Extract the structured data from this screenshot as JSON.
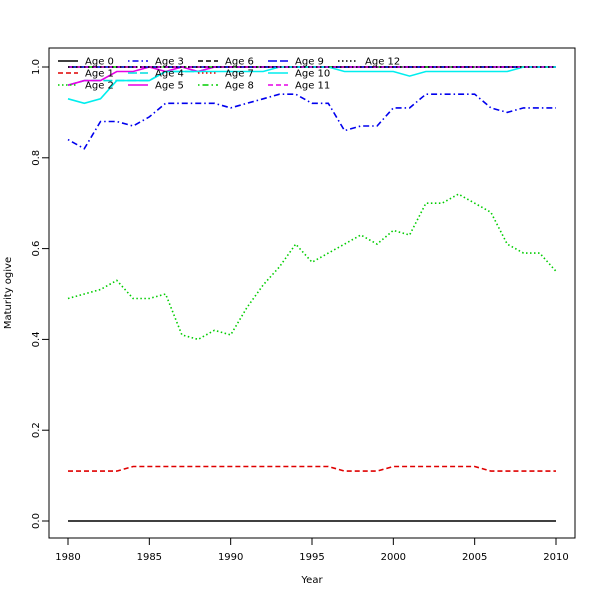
{
  "chart_data": {
    "type": "line",
    "title": "",
    "xlabel": "Year",
    "ylabel": "Maturity ogive",
    "xlim": [
      1980,
      2010
    ],
    "ylim": [
      0,
      1
    ],
    "x_ticks": [
      "1980",
      "1985",
      "1990",
      "1995",
      "2000",
      "2005",
      "2010"
    ],
    "y_ticks": [
      "0.0",
      "0.2",
      "0.4",
      "0.6",
      "0.8",
      "1.0"
    ],
    "grid": false,
    "legend_position": "top-left",
    "legend_columns": 6,
    "x": [
      1980,
      1981,
      1982,
      1983,
      1984,
      1985,
      1986,
      1987,
      1988,
      1989,
      1990,
      1991,
      1992,
      1993,
      1994,
      1995,
      1996,
      1997,
      1998,
      1999,
      2000,
      2001,
      2002,
      2003,
      2004,
      2005,
      2006,
      2007,
      2008,
      2009,
      2010
    ],
    "series": [
      {
        "name": "Age 0",
        "color": "#000000",
        "dash": "solid",
        "values": [
          0,
          0,
          0,
          0,
          0,
          0,
          0,
          0,
          0,
          0,
          0,
          0,
          0,
          0,
          0,
          0,
          0,
          0,
          0,
          0,
          0,
          0,
          0,
          0,
          0,
          0,
          0,
          0,
          0,
          0,
          0
        ]
      },
      {
        "name": "Age 1",
        "color": "#DF0000",
        "dash": "dashed",
        "values": [
          0.11,
          0.11,
          0.11,
          0.11,
          0.12,
          0.12,
          0.12,
          0.12,
          0.12,
          0.12,
          0.12,
          0.12,
          0.12,
          0.12,
          0.12,
          0.12,
          0.12,
          0.11,
          0.11,
          0.11,
          0.12,
          0.12,
          0.12,
          0.12,
          0.12,
          0.12,
          0.11,
          0.11,
          0.11,
          0.11,
          0.11
        ]
      },
      {
        "name": "Age 2",
        "color": "#00CD00",
        "dash": "dotted",
        "values": [
          0.49,
          0.5,
          0.51,
          0.53,
          0.49,
          0.49,
          0.5,
          0.41,
          0.4,
          0.42,
          0.41,
          0.47,
          0.52,
          0.56,
          0.61,
          0.57,
          0.59,
          0.61,
          0.63,
          0.61,
          0.64,
          0.63,
          0.7,
          0.7,
          0.72,
          0.7,
          0.68,
          0.61,
          0.59,
          0.59,
          0.55
        ]
      },
      {
        "name": "Age 3",
        "color": "#0000EE",
        "dash": "dotdash",
        "values": [
          0.84,
          0.82,
          0.88,
          0.88,
          0.87,
          0.89,
          0.92,
          0.92,
          0.92,
          0.92,
          0.91,
          0.92,
          0.93,
          0.94,
          0.94,
          0.92,
          0.92,
          0.86,
          0.87,
          0.87,
          0.91,
          0.91,
          0.94,
          0.94,
          0.94,
          0.94,
          0.91,
          0.9,
          0.91,
          0.91,
          0.91
        ]
      },
      {
        "name": "Age 4",
        "color": "#00DDDD",
        "dash": "longdash",
        "values": [
          0.96,
          0.97,
          0.97,
          0.97,
          0.97,
          0.97,
          0.99,
          0.99,
          0.99,
          1,
          1,
          1,
          1,
          1,
          1,
          1,
          1,
          1,
          1,
          1,
          1,
          1,
          1,
          1,
          1,
          1,
          1,
          1,
          1,
          1,
          1
        ]
      },
      {
        "name": "Age 5",
        "color": "#E600E6",
        "dash": "solid",
        "values": [
          0.96,
          0.97,
          0.97,
          0.99,
          0.99,
          1,
          0.99,
          1,
          0.99,
          1,
          1,
          1,
          1,
          1,
          1,
          1,
          1,
          1,
          1,
          1,
          1,
          1,
          1,
          1,
          1,
          1,
          1,
          1,
          1,
          1,
          1
        ]
      },
      {
        "name": "Age 6",
        "color": "#000000",
        "dash": "dashed",
        "values": [
          1,
          1,
          1,
          1,
          1,
          1,
          1,
          1,
          1,
          1,
          1,
          1,
          1,
          1,
          1,
          1,
          1,
          1,
          1,
          1,
          1,
          1,
          1,
          1,
          1,
          1,
          1,
          1,
          1,
          1,
          1
        ]
      },
      {
        "name": "Age 7",
        "color": "#DF0000",
        "dash": "dotted",
        "values": [
          1,
          1,
          1,
          1,
          1,
          1,
          1,
          1,
          1,
          1,
          1,
          1,
          1,
          1,
          1,
          1,
          1,
          1,
          1,
          1,
          1,
          1,
          1,
          1,
          1,
          1,
          1,
          1,
          1,
          1,
          1
        ]
      },
      {
        "name": "Age 8",
        "color": "#00CD00",
        "dash": "dotdash",
        "values": [
          1,
          1,
          1,
          1,
          1,
          1,
          1,
          1,
          1,
          1,
          1,
          1,
          1,
          1,
          1,
          1,
          1,
          1,
          1,
          1,
          1,
          1,
          1,
          1,
          1,
          1,
          1,
          1,
          1,
          1,
          1
        ]
      },
      {
        "name": "Age 9",
        "color": "#0000EE",
        "dash": "longdash",
        "values": [
          1,
          1,
          1,
          1,
          1,
          1,
          1,
          1,
          1,
          1,
          1,
          1,
          1,
          1,
          1,
          1,
          1,
          1,
          1,
          1,
          1,
          1,
          1,
          1,
          1,
          1,
          1,
          1,
          1,
          1,
          1
        ]
      },
      {
        "name": "Age 10",
        "color": "#00EEEE",
        "dash": "solid",
        "values": [
          0.93,
          0.92,
          0.93,
          0.97,
          0.97,
          0.97,
          0.99,
          0.99,
          0.99,
          0.99,
          0.99,
          0.99,
          0.99,
          1,
          1,
          1,
          1,
          0.99,
          0.99,
          0.99,
          0.99,
          0.98,
          0.99,
          0.99,
          0.99,
          0.99,
          0.99,
          0.99,
          1,
          1,
          1
        ]
      },
      {
        "name": "Age 11",
        "color": "#E600E6",
        "dash": "dashed",
        "values": [
          1,
          1,
          1,
          1,
          1,
          1,
          1,
          1,
          1,
          1,
          1,
          1,
          1,
          1,
          1,
          1,
          1,
          1,
          1,
          1,
          1,
          1,
          1,
          1,
          1,
          1,
          1,
          1,
          1,
          1,
          1
        ]
      },
      {
        "name": "Age 12",
        "color": "#000000",
        "dash": "dotted",
        "values": [
          1,
          1,
          1,
          1,
          1,
          1,
          1,
          1,
          1,
          1,
          1,
          1,
          1,
          1,
          1,
          1,
          1,
          1,
          1,
          1,
          1,
          1,
          1,
          1,
          1,
          1,
          1,
          1,
          1,
          1,
          1
        ]
      }
    ]
  }
}
